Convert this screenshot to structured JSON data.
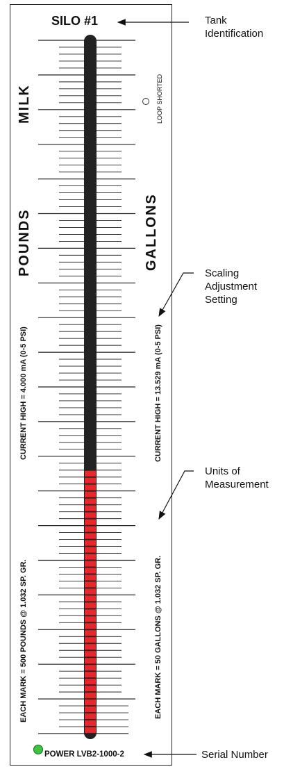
{
  "tank_title": "SILO #1",
  "left_labels": {
    "product": "MILK",
    "unit": "POUNDS",
    "current": "CURRENT HIGH = 4.000 mA (0-5 PSI)",
    "mark": "EACH MARK = 500 POUNDS @ 1.032 SP. GR."
  },
  "right_labels": {
    "unit": "GALLONS",
    "current": "CURRENT HIGH = 13.529 mA (0-5 PSI)",
    "mark": "EACH MARK = 50 GALLONS @ 1.032 SP. GR."
  },
  "loop_label": "LOOP SHORTED",
  "power_label": "POWER",
  "serial_number": "LVB2-1000-2",
  "bar_graph": {
    "fill_fraction": 0.38,
    "colors": {
      "empty": "#222222",
      "filled": "#e8262b",
      "ticks": "#222222"
    }
  },
  "callouts": {
    "tank_id": [
      "Tank",
      "Identification"
    ],
    "scaling": [
      "Scaling",
      "Adjustment",
      "Setting"
    ],
    "units": [
      "Units of",
      "Measurement"
    ],
    "serial": "Serial Number"
  },
  "colors": {
    "power_led": "#3fc23f",
    "border": "#222222"
  }
}
